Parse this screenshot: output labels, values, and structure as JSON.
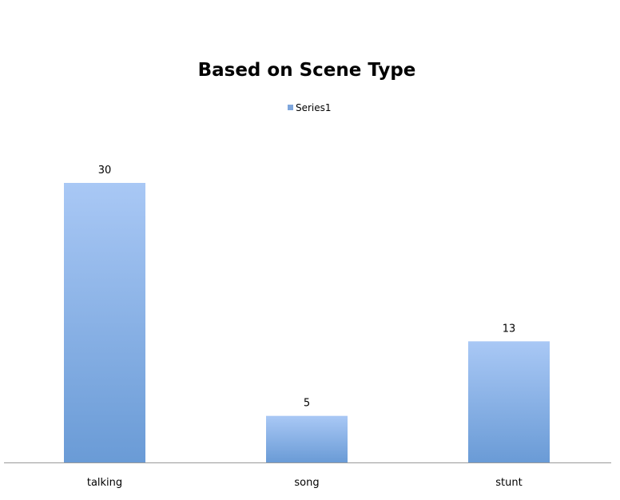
{
  "chart_data": {
    "type": "bar",
    "title": "Based on Scene Type",
    "categories": [
      "talking",
      "song",
      "stunt"
    ],
    "series": [
      {
        "name": "Series1",
        "values": [
          30,
          5,
          13
        ]
      }
    ],
    "ylim": [
      0,
      30
    ],
    "grid": false,
    "legend_position": "top-center",
    "data_labels": true,
    "colors": {
      "bar_top": "#a9c8f5",
      "bar_bottom": "#6a9bd6",
      "legend_swatch": "#7ea6dc",
      "axis": "#9a9a9a"
    }
  }
}
